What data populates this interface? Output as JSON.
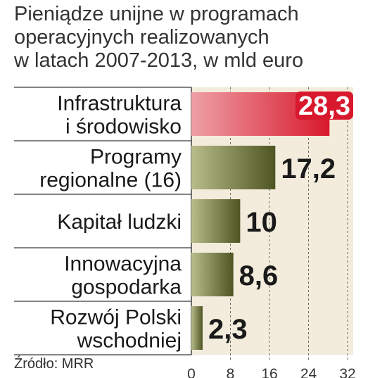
{
  "title_lines": [
    "Pieniądze unijne w programach",
    "operacyjnych realizowanych",
    "w latach 2007-2013, w mld euro"
  ],
  "source": "Źródło: MRR",
  "chart_data": {
    "type": "bar",
    "orientation": "horizontal",
    "categories": [
      [
        "Infrastruktura",
        "i środowisko"
      ],
      [
        "Programy",
        "regionalne (16)"
      ],
      [
        "Kapitał ludzki"
      ],
      [
        "Innowacyjna",
        "gospodarka"
      ],
      [
        "Rozwój Polski",
        "wschodniej"
      ]
    ],
    "values": [
      28.3,
      17.2,
      10,
      8.6,
      2.3
    ],
    "value_labels": [
      "28,3",
      "17,2",
      "10",
      "8,6",
      "2,3"
    ],
    "xlim": [
      0,
      32
    ],
    "xticks": [
      0,
      8,
      16,
      24,
      32
    ],
    "grid": "vertical dashed",
    "colors": {
      "highlight_bar": "#e05a66",
      "highlight_label_bg": "#d8192d",
      "bar_light": "#b8bd8a",
      "bar_dark": "#4e5523",
      "plot_bg": "#f3ecdc",
      "separator": "#3a3a3a"
    }
  }
}
